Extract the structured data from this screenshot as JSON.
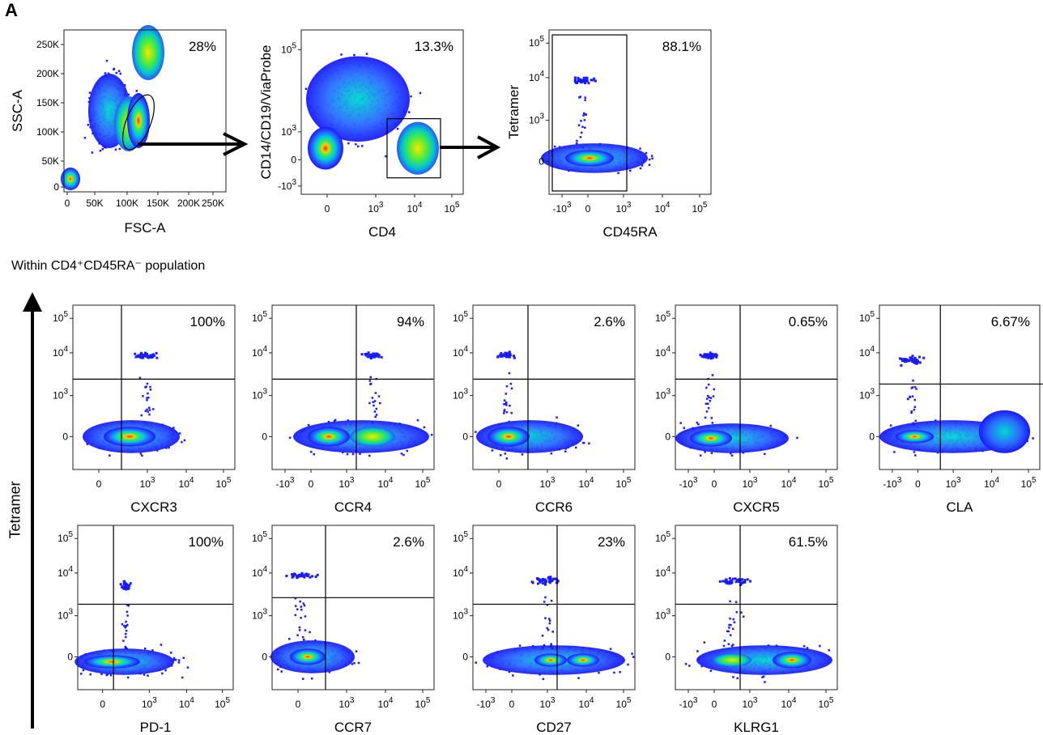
{
  "panel_letter": "A",
  "section_label": "Within CD4⁺CD45RA⁻ population",
  "shared_ylabel": "Tetramer",
  "colors": {
    "density_low": "#1a1aff",
    "density_mid": "#00e0c0",
    "density_high": "#ff2a00"
  },
  "chart_data": [
    {
      "type": "scatter",
      "id": "fsc-ssc",
      "xlabel": "FSC-A",
      "ylabel": "SSC-A",
      "gate": "ellipse",
      "percent": "28%",
      "x_ticks": [
        "0",
        "50K",
        "100K",
        "150K",
        "200K",
        "250K"
      ],
      "y_ticks": [
        "0",
        "50K",
        "100K",
        "150K",
        "200K",
        "250K"
      ]
    },
    {
      "type": "scatter",
      "id": "cd4-lineage",
      "xlabel": "CD4",
      "ylabel": "CD14/CD19/ViaProbe",
      "gate": "rectangle",
      "percent": "13.3%",
      "x_ticks": [
        "0",
        "10^3",
        "10^4",
        "10^5"
      ],
      "y_ticks": [
        "-10^3",
        "0",
        "10^3",
        "10^5"
      ]
    },
    {
      "type": "scatter",
      "id": "cd45ra-tetramer",
      "xlabel": "CD45RA",
      "ylabel": "Tetramer",
      "gate": "rectangle",
      "percent": "88.1%",
      "x_ticks": [
        "-10^3",
        "0",
        "10^3",
        "10^4",
        "10^5"
      ],
      "y_ticks": [
        "0",
        "10^3",
        "10^4",
        "10^5"
      ]
    },
    {
      "type": "scatter",
      "id": "cxcr3",
      "xlabel": "CXCR3",
      "percent": "100%",
      "x_ticks": [
        "0",
        "10^3",
        "10^4",
        "10^5"
      ],
      "y_ticks": [
        "0",
        "10^3",
        "10^4",
        "10^5"
      ]
    },
    {
      "type": "scatter",
      "id": "ccr4",
      "xlabel": "CCR4",
      "percent": "94%",
      "x_ticks": [
        "-10^3",
        "0",
        "10^3",
        "10^4",
        "10^5"
      ],
      "y_ticks": [
        "0",
        "10^3",
        "10^4",
        "10^5"
      ]
    },
    {
      "type": "scatter",
      "id": "ccr6",
      "xlabel": "CCR6",
      "percent": "2.6%",
      "x_ticks": [
        "0",
        "10^3",
        "10^4",
        "10^5"
      ],
      "y_ticks": [
        "0",
        "10^3",
        "10^4",
        "10^5"
      ]
    },
    {
      "type": "scatter",
      "id": "cxcr5",
      "xlabel": "CXCR5",
      "percent": "0.65%",
      "x_ticks": [
        "-10^3",
        "0",
        "10^3",
        "10^4",
        "10^5"
      ],
      "y_ticks": [
        "0",
        "10^3",
        "10^4",
        "10^5"
      ]
    },
    {
      "type": "scatter",
      "id": "cla",
      "xlabel": "CLA",
      "percent": "6.67%",
      "x_ticks": [
        "-10^3",
        "0",
        "10^3",
        "10^4",
        "10^5"
      ],
      "y_ticks": [
        "0",
        "10^3",
        "10^4",
        "10^5"
      ]
    },
    {
      "type": "scatter",
      "id": "pd1",
      "xlabel": "PD-1",
      "percent": "100%",
      "x_ticks": [
        "0",
        "10^3",
        "10^4",
        "10^5"
      ],
      "y_ticks": [
        "0",
        "10^3",
        "10^4",
        "10^5"
      ]
    },
    {
      "type": "scatter",
      "id": "ccr7",
      "xlabel": "CCR7",
      "percent": "2.6%",
      "x_ticks": [
        "0",
        "10^3",
        "10^4",
        "10^5"
      ],
      "y_ticks": [
        "0",
        "10^3",
        "10^4",
        "10^5"
      ]
    },
    {
      "type": "scatter",
      "id": "cd27",
      "xlabel": "CD27",
      "percent": "23%",
      "x_ticks": [
        "-10^3",
        "0",
        "10^3",
        "10^4",
        "10^5"
      ],
      "y_ticks": [
        "0",
        "10^3",
        "10^4",
        "10^5"
      ]
    },
    {
      "type": "scatter",
      "id": "klrg1",
      "xlabel": "KLRG1",
      "percent": "61.5%",
      "x_ticks": [
        "-10^3",
        "0",
        "10^3",
        "10^4",
        "10^5"
      ],
      "y_ticks": [
        "0",
        "10^3",
        "10^4",
        "10^5"
      ]
    }
  ]
}
